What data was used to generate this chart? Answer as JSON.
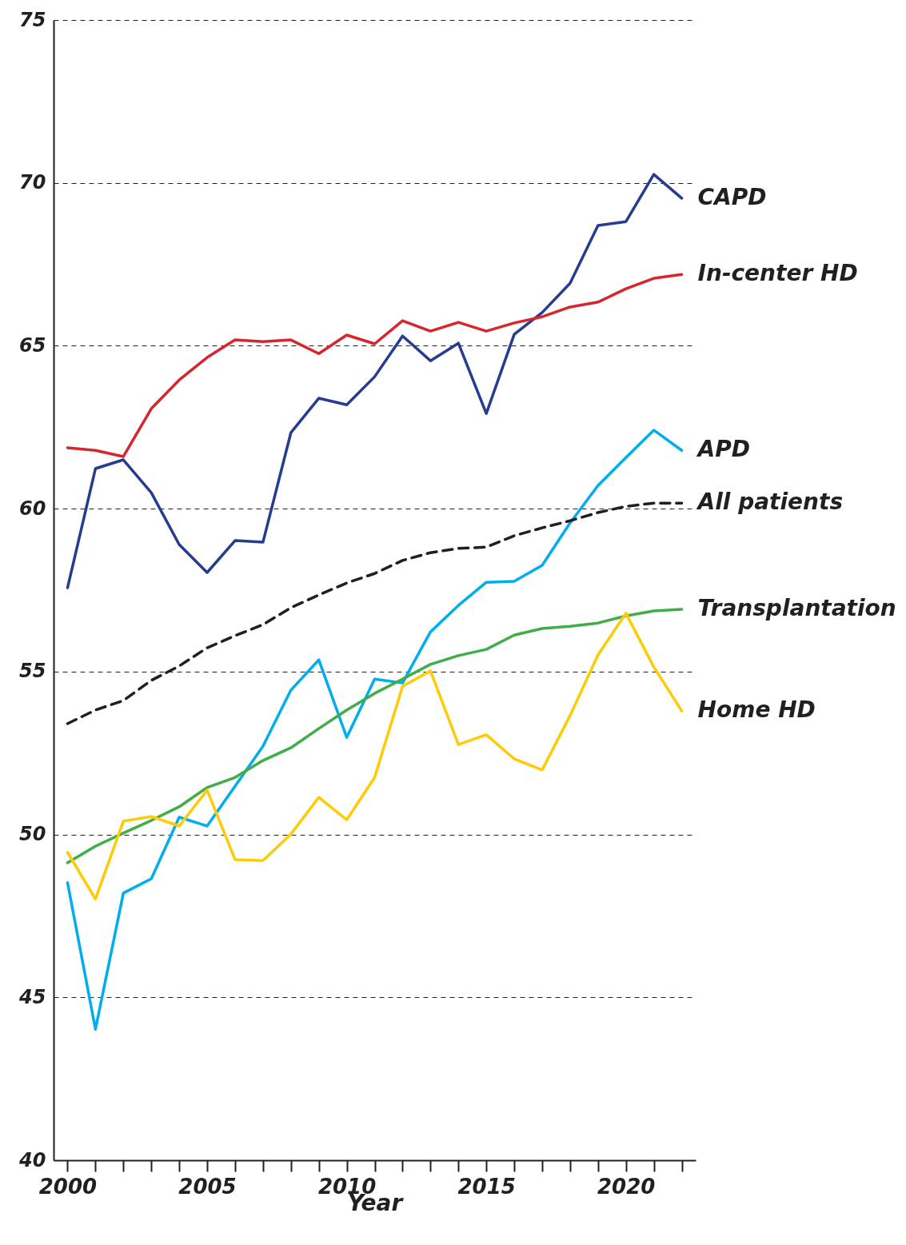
{
  "chart_data": {
    "type": "line",
    "xlabel": "Year",
    "x": [
      2000,
      2001,
      2002,
      2003,
      2004,
      2005,
      2006,
      2007,
      2008,
      2009,
      2010,
      2011,
      2012,
      2013,
      2014,
      2015,
      2016,
      2017,
      2018,
      2019,
      2020,
      2021,
      2022
    ],
    "xlim": [
      1999.5,
      2022.5
    ],
    "xticks": [
      2000,
      {
        "value": 2001,
        "label": null
      },
      {
        "value": 2002,
        "label": null
      },
      {
        "value": 2003,
        "label": null
      },
      {
        "value": 2004,
        "label": null
      },
      2005,
      {
        "value": 2006,
        "label": null
      },
      {
        "value": 2007,
        "label": null
      },
      {
        "value": 2008,
        "label": null
      },
      {
        "value": 2009,
        "label": null
      },
      2010,
      {
        "value": 2011,
        "label": null
      },
      {
        "value": 2012,
        "label": null
      },
      {
        "value": 2013,
        "label": null
      },
      {
        "value": 2014,
        "label": null
      },
      2015,
      {
        "value": 2016,
        "label": null
      },
      {
        "value": 2017,
        "label": null
      },
      {
        "value": 2018,
        "label": null
      },
      {
        "value": 2019,
        "label": null
      },
      2020,
      {
        "value": 2021,
        "label": null
      },
      {
        "value": 2022,
        "label": null
      }
    ],
    "ylim": [
      40,
      75
    ],
    "yticks": [
      40,
      45,
      50,
      55,
      60,
      65,
      70,
      75
    ],
    "grid": "y",
    "legend": false,
    "series": [
      {
        "name": "CAPD",
        "color": "#253d8f",
        "line_style": "solid",
        "values": [
          57.57,
          61.23,
          61.5,
          60.49,
          58.9,
          58.04,
          59.02,
          58.97,
          62.33,
          63.39,
          63.19,
          64.05,
          65.3,
          64.54,
          65.08,
          62.92,
          65.35,
          66.02,
          66.92,
          68.69,
          68.81,
          70.26,
          69.53
        ]
      },
      {
        "name": "In-center HD",
        "color": "#d7262e",
        "line_style": "solid",
        "values": [
          61.87,
          61.79,
          61.6,
          63.07,
          63.95,
          64.64,
          65.18,
          65.13,
          65.18,
          64.76,
          65.33,
          65.06,
          65.77,
          65.45,
          65.72,
          65.45,
          65.7,
          65.89,
          66.19,
          66.34,
          66.75,
          67.07,
          67.19
        ]
      },
      {
        "name": "APD",
        "color": "#00aeef",
        "line_style": "solid",
        "values": [
          48.52,
          44.02,
          48.2,
          48.64,
          50.53,
          50.26,
          51.48,
          52.71,
          54.43,
          55.36,
          52.98,
          54.77,
          54.65,
          56.22,
          57.03,
          57.74,
          57.77,
          58.26,
          59.56,
          60.71,
          61.57,
          62.41,
          61.79
        ]
      },
      {
        "name": "All patients",
        "color": "#231f20",
        "line_style": "dashed",
        "values": [
          53.4,
          53.82,
          54.11,
          54.73,
          55.17,
          55.73,
          56.1,
          56.44,
          56.96,
          57.35,
          57.72,
          58.01,
          58.41,
          58.65,
          58.78,
          58.82,
          59.17,
          59.41,
          59.63,
          59.88,
          60.07,
          60.17,
          60.17
        ]
      },
      {
        "name": "Transplantation",
        "color": "#3fae49",
        "line_style": "solid",
        "values": [
          49.13,
          49.64,
          50.04,
          50.43,
          50.85,
          51.44,
          51.75,
          52.27,
          52.66,
          53.25,
          53.82,
          54.33,
          54.77,
          55.22,
          55.49,
          55.68,
          56.12,
          56.32,
          56.39,
          56.49,
          56.71,
          56.86,
          56.91
        ]
      },
      {
        "name": "Home HD",
        "color": "#ffcb05",
        "line_style": "solid",
        "values": [
          49.45,
          48.02,
          50.41,
          50.55,
          50.26,
          51.36,
          49.23,
          49.2,
          50.01,
          51.14,
          50.45,
          51.75,
          54.55,
          55.02,
          52.76,
          53.06,
          52.32,
          51.98,
          53.65,
          55.51,
          56.79,
          55.14,
          53.79
        ]
      }
    ]
  }
}
